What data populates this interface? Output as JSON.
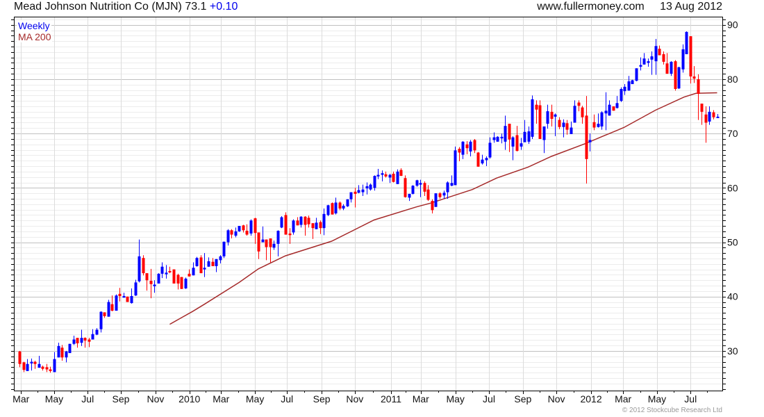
{
  "header": {
    "title": "Mead Johnson Nutrition Co (MJN) 73.1",
    "change": "+0.10",
    "site": "www.fullermoney.com",
    "date": "13 Aug 2012"
  },
  "legend": [
    {
      "label": "Weekly",
      "color": "#0000ee"
    },
    {
      "label": "MA 200",
      "color": "#a52a2a"
    }
  ],
  "copyright": "© 2012 Stockcube Research Ltd",
  "colors": {
    "up": "#0000ff",
    "down": "#ff0000",
    "ma": "#a52a2a"
  },
  "chart_data": {
    "type": "candlestick",
    "title": "Mead Johnson Nutrition Co (MJN)",
    "interval": "Weekly",
    "ylim": [
      22.7,
      91.5
    ],
    "yticks": [
      30,
      40,
      50,
      60,
      70,
      80,
      90
    ],
    "xticks": [
      {
        "label": "Mar",
        "week": 0.4
      },
      {
        "label": "May",
        "week": 9.0
      },
      {
        "label": "Jul",
        "week": 17.7
      },
      {
        "label": "Sep",
        "week": 26.3
      },
      {
        "label": "Nov",
        "week": 35.3
      },
      {
        "label": "2010",
        "week": 44.1
      },
      {
        "label": "Mar",
        "week": 52.3
      },
      {
        "label": "May",
        "week": 61.1
      },
      {
        "label": "Jul",
        "week": 69.4
      },
      {
        "label": "Sep",
        "week": 78.4
      },
      {
        "label": "Nov",
        "week": 87.0
      },
      {
        "label": "2011",
        "week": 96.4
      },
      {
        "label": "Mar",
        "week": 104.1
      },
      {
        "label": "May",
        "week": 113.1
      },
      {
        "label": "Jul",
        "week": 121.8
      },
      {
        "label": "Sep",
        "week": 130.6
      },
      {
        "label": "Nov",
        "week": 139.3
      },
      {
        "label": "2012",
        "week": 148.3
      },
      {
        "label": "Mar",
        "week": 156.6
      },
      {
        "label": "May",
        "week": 165.4
      },
      {
        "label": "Jul",
        "week": 174.1
      }
    ],
    "ohlc_fields": [
      "open",
      "high",
      "low",
      "close"
    ],
    "candles": [
      [
        29.9,
        30.0,
        27.0,
        27.6
      ],
      [
        27.9,
        28.0,
        26.1,
        26.5
      ],
      [
        26.3,
        28.5,
        26.3,
        27.6
      ],
      [
        27.7,
        28.6,
        26.4,
        28.0
      ],
      [
        28.0,
        28.2,
        26.7,
        27.6
      ],
      [
        26.9,
        29.1,
        26.9,
        27.6
      ],
      [
        27.1,
        27.3,
        26.4,
        26.7
      ],
      [
        27.0,
        27.6,
        26.1,
        26.6
      ],
      [
        26.6,
        27.1,
        26.0,
        26.3
      ],
      [
        26.1,
        29.8,
        26.1,
        28.5
      ],
      [
        28.8,
        31.5,
        28.8,
        30.9
      ],
      [
        30.6,
        31.1,
        28.2,
        28.8
      ],
      [
        28.8,
        30.0,
        27.9,
        29.9
      ],
      [
        29.6,
        31.3,
        29.6,
        31.3
      ],
      [
        31.3,
        32.8,
        31.1,
        32.1
      ],
      [
        32.4,
        32.4,
        30.6,
        31.4
      ],
      [
        31.5,
        33.9,
        30.9,
        32.4
      ],
      [
        32.4,
        32.5,
        30.6,
        31.9
      ],
      [
        32.1,
        32.4,
        30.7,
        31.7
      ],
      [
        32.1,
        34.0,
        32.1,
        33.1
      ],
      [
        33.0,
        34.2,
        32.9,
        33.9
      ],
      [
        34.0,
        37.3,
        33.4,
        37.2
      ],
      [
        37.1,
        37.1,
        36.1,
        36.4
      ],
      [
        36.3,
        39.4,
        36.3,
        39.0
      ],
      [
        38.6,
        40.2,
        37.3,
        37.4
      ],
      [
        37.4,
        40.4,
        37.4,
        40.2
      ],
      [
        40.5,
        41.6,
        39.1,
        40.1
      ],
      [
        39.8,
        40.7,
        39.8,
        40.1
      ],
      [
        40.0,
        40.0,
        39.0,
        39.0
      ],
      [
        38.8,
        41.5,
        38.7,
        40.1
      ],
      [
        40.2,
        43.1,
        40.1,
        42.6
      ],
      [
        42.8,
        50.5,
        42.6,
        47.4
      ],
      [
        47.1,
        47.6,
        43.9,
        44.3
      ],
      [
        44.3,
        44.3,
        41.1,
        43.0
      ],
      [
        42.9,
        45.1,
        39.7,
        42.3
      ],
      [
        41.9,
        43.0,
        40.7,
        42.2
      ],
      [
        42.4,
        44.3,
        42.4,
        44.2
      ],
      [
        44.2,
        46.3,
        43.4,
        45.5
      ],
      [
        44.1,
        45.8,
        43.3,
        44.4
      ],
      [
        44.7,
        45.5,
        44.3,
        44.5
      ],
      [
        45.0,
        45.0,
        42.4,
        42.4
      ],
      [
        44.0,
        44.2,
        41.3,
        42.4
      ],
      [
        43.6,
        43.6,
        41.4,
        41.4
      ],
      [
        41.5,
        43.5,
        41.4,
        43.3
      ],
      [
        44.2,
        45.0,
        43.7,
        43.7
      ],
      [
        43.9,
        46.3,
        43.9,
        45.3
      ],
      [
        45.6,
        47.3,
        45.5,
        47.1
      ],
      [
        47.2,
        47.6,
        44.3,
        44.3
      ],
      [
        45.0,
        48.0,
        43.6,
        45.3
      ],
      [
        45.5,
        47.2,
        45.5,
        46.5
      ],
      [
        46.4,
        47.1,
        45.6,
        45.6
      ],
      [
        45.6,
        46.9,
        44.5,
        46.9
      ],
      [
        46.7,
        47.6,
        46.1,
        47.4
      ],
      [
        47.4,
        50.1,
        47.1,
        50.1
      ],
      [
        50.0,
        52.4,
        49.4,
        52.2
      ],
      [
        52.2,
        52.4,
        50.7,
        51.4
      ],
      [
        51.2,
        52.7,
        50.9,
        52.0
      ],
      [
        52.0,
        53.0,
        51.9,
        53.0
      ],
      [
        53.1,
        53.2,
        51.8,
        52.2
      ],
      [
        52.1,
        53.3,
        51.2,
        51.4
      ],
      [
        51.6,
        54.2,
        51.2,
        54.0
      ],
      [
        54.4,
        54.5,
        49.7,
        51.7
      ],
      [
        51.8,
        51.8,
        46.9,
        48.3
      ],
      [
        50.0,
        52.9,
        50.0,
        50.5
      ],
      [
        50.5,
        50.5,
        46.7,
        49.1
      ],
      [
        50.7,
        50.7,
        46.3,
        49.1
      ],
      [
        49.0,
        50.3,
        48.6,
        49.7
      ],
      [
        49.7,
        52.2,
        47.4,
        52.1
      ],
      [
        52.7,
        54.8,
        52.6,
        54.6
      ],
      [
        55.0,
        55.5,
        51.4,
        51.4
      ],
      [
        51.6,
        52.6,
        49.7,
        51.3
      ],
      [
        51.8,
        54.2,
        51.4,
        54.0
      ],
      [
        54.0,
        54.6,
        53.1,
        53.1
      ],
      [
        53.2,
        54.8,
        52.7,
        54.7
      ],
      [
        54.7,
        54.8,
        51.2,
        53.2
      ],
      [
        54.5,
        54.9,
        52.7,
        53.3
      ],
      [
        53.5,
        53.5,
        50.6,
        52.6
      ],
      [
        52.4,
        54.5,
        52.4,
        53.6
      ],
      [
        53.7,
        54.0,
        51.5,
        52.6
      ],
      [
        52.6,
        56.2,
        51.3,
        55.2
      ],
      [
        55.0,
        56.9,
        54.8,
        56.8
      ],
      [
        57.2,
        57.3,
        55.1,
        55.1
      ],
      [
        55.3,
        58.2,
        55.1,
        57.3
      ],
      [
        57.3,
        57.5,
        55.9,
        56.2
      ],
      [
        56.2,
        57.0,
        55.9,
        56.7
      ],
      [
        56.6,
        57.9,
        56.5,
        57.9
      ],
      [
        57.9,
        59.2,
        57.3,
        59.2
      ],
      [
        59.3,
        60.0,
        56.4,
        58.9
      ],
      [
        59.1,
        60.5,
        59.0,
        59.6
      ],
      [
        59.2,
        60.6,
        58.5,
        59.7
      ],
      [
        59.9,
        61.0,
        58.8,
        60.3
      ],
      [
        59.7,
        60.8,
        59.5,
        60.6
      ],
      [
        60.0,
        62.3,
        59.5,
        62.2
      ],
      [
        62.1,
        63.5,
        61.6,
        62.4
      ],
      [
        62.4,
        63.2,
        61.2,
        62.7
      ],
      [
        62.5,
        63.0,
        61.9,
        62.1
      ],
      [
        61.9,
        62.6,
        60.9,
        62.4
      ],
      [
        62.6,
        63.0,
        61.0,
        61.1
      ],
      [
        60.7,
        63.4,
        60.7,
        63.0
      ],
      [
        63.3,
        63.6,
        62.2,
        62.2
      ],
      [
        61.8,
        62.3,
        58.2,
        58.3
      ],
      [
        58.2,
        58.9,
        57.6,
        58.9
      ],
      [
        58.9,
        60.5,
        58.8,
        60.4
      ],
      [
        60.4,
        61.5,
        60.2,
        61.4
      ],
      [
        60.6,
        61.5,
        58.3,
        60.9
      ],
      [
        60.9,
        61.2,
        58.5,
        59.3
      ],
      [
        59.7,
        60.5,
        57.6,
        57.8
      ],
      [
        57.6,
        57.9,
        55.3,
        55.9
      ],
      [
        56.5,
        59.0,
        56.5,
        59.0
      ],
      [
        59.0,
        59.2,
        58.0,
        58.3
      ],
      [
        58.6,
        59.5,
        58.0,
        59.1
      ],
      [
        59.2,
        61.2,
        58.0,
        61.0
      ],
      [
        60.4,
        62.3,
        60.3,
        60.9
      ],
      [
        60.5,
        67.6,
        60.5,
        66.9
      ],
      [
        67.2,
        67.5,
        64.9,
        66.5
      ],
      [
        66.1,
        68.6,
        65.3,
        68.5
      ],
      [
        68.0,
        68.6,
        66.2,
        67.3
      ],
      [
        66.7,
        68.8,
        65.8,
        68.5
      ],
      [
        68.8,
        69.0,
        66.4,
        66.9
      ],
      [
        66.5,
        66.6,
        63.9,
        63.9
      ],
      [
        64.5,
        66.1,
        64.3,
        65.2
      ],
      [
        65.1,
        65.8,
        64.0,
        65.5
      ],
      [
        65.6,
        69.3,
        65.4,
        68.3
      ],
      [
        68.8,
        70.2,
        68.3,
        69.3
      ],
      [
        68.5,
        69.5,
        68.5,
        69.4
      ],
      [
        69.1,
        70.0,
        68.2,
        69.4
      ],
      [
        68.5,
        73.3,
        67.0,
        71.4
      ],
      [
        71.8,
        71.8,
        66.6,
        68.9
      ],
      [
        67.6,
        69.5,
        65.1,
        69.3
      ],
      [
        69.7,
        71.4,
        66.7,
        66.8
      ],
      [
        67.6,
        69.2,
        67.0,
        68.2
      ],
      [
        68.4,
        72.5,
        68.4,
        70.3
      ],
      [
        68.5,
        71.3,
        68.1,
        70.4
      ],
      [
        69.4,
        77.0,
        69.0,
        76.3
      ],
      [
        75.3,
        76.1,
        71.8,
        74.4
      ],
      [
        75.2,
        76.1,
        69.0,
        69.0
      ],
      [
        68.8,
        71.3,
        66.4,
        71.3
      ],
      [
        71.8,
        75.3,
        70.9,
        74.1
      ],
      [
        74.0,
        75.3,
        71.3,
        72.7
      ],
      [
        73.1,
        73.7,
        69.5,
        73.5
      ],
      [
        72.5,
        73.0,
        70.8,
        71.2
      ],
      [
        71.2,
        72.6,
        69.3,
        72.0
      ],
      [
        71.9,
        72.5,
        69.8,
        70.7
      ],
      [
        69.9,
        72.2,
        69.9,
        71.1
      ],
      [
        72.0,
        76.1,
        72.0,
        75.1
      ],
      [
        75.7,
        76.1,
        74.1,
        75.1
      ],
      [
        74.8,
        75.1,
        71.8,
        73.0
      ],
      [
        73.3,
        76.9,
        60.8,
        65.3
      ],
      [
        68.4,
        70.0,
        66.7,
        68.8
      ],
      [
        72.1,
        73.5,
        70.6,
        71.1
      ],
      [
        71.2,
        73.7,
        71.1,
        71.8
      ],
      [
        71.3,
        74.1,
        70.7,
        73.9
      ],
      [
        73.7,
        77.6,
        70.6,
        74.2
      ],
      [
        73.3,
        76.1,
        73.3,
        75.3
      ],
      [
        75.0,
        75.0,
        74.2,
        74.2
      ],
      [
        74.7,
        76.9,
        74.6,
        75.6
      ],
      [
        76.0,
        78.5,
        75.8,
        78.2
      ],
      [
        77.8,
        79.1,
        77.1,
        78.6
      ],
      [
        77.9,
        80.6,
        77.9,
        79.6
      ],
      [
        79.1,
        79.9,
        79.1,
        79.8
      ],
      [
        79.7,
        82.0,
        79.6,
        82.0
      ],
      [
        82.3,
        84.0,
        81.6,
        82.6
      ],
      [
        82.7,
        84.8,
        82.7,
        83.8
      ],
      [
        83.0,
        83.8,
        82.3,
        83.3
      ],
      [
        83.6,
        85.1,
        80.8,
        84.2
      ],
      [
        83.3,
        87.4,
        80.8,
        86.1
      ],
      [
        85.6,
        86.2,
        84.4,
        84.4
      ],
      [
        84.6,
        85.1,
        82.7,
        83.2
      ],
      [
        82.9,
        84.8,
        81.0,
        81.0
      ],
      [
        81.0,
        83.3,
        80.6,
        83.2
      ],
      [
        83.3,
        83.5,
        77.9,
        78.2
      ],
      [
        78.3,
        82.3,
        78.2,
        82.2
      ],
      [
        81.8,
        86.4,
        81.2,
        85.5
      ],
      [
        84.6,
        88.8,
        84.6,
        88.7
      ],
      [
        87.9,
        87.9,
        79.2,
        80.5
      ],
      [
        80.5,
        82.4,
        79.3,
        80.1
      ],
      [
        80.0,
        80.9,
        72.5,
        77.3
      ],
      [
        75.5,
        75.5,
        71.6,
        74.0
      ],
      [
        73.5,
        75.0,
        68.3,
        72.0
      ],
      [
        72.2,
        75.0,
        71.6,
        74.0
      ],
      [
        73.9,
        74.3,
        72.6,
        73.0
      ],
      [
        73.0,
        73.6,
        72.9,
        73.1
      ]
    ],
    "ma200": [
      [
        39,
        34.9
      ],
      [
        45,
        37.3
      ],
      [
        48,
        38.6
      ],
      [
        57,
        42.6
      ],
      [
        62,
        45.1
      ],
      [
        69,
        47.5
      ],
      [
        81,
        50.2
      ],
      [
        92,
        54.1
      ],
      [
        103,
        56.5
      ],
      [
        106.7,
        57.2
      ],
      [
        117.5,
        59.7
      ],
      [
        123.8,
        61.8
      ],
      [
        131.9,
        63.8
      ],
      [
        138,
        65.8
      ],
      [
        147,
        68.2
      ],
      [
        151,
        69.4
      ],
      [
        156.8,
        71.1
      ],
      [
        165,
        74.3
      ],
      [
        172.4,
        76.7
      ],
      [
        175.5,
        77.4
      ],
      [
        181,
        77.5
      ]
    ]
  }
}
